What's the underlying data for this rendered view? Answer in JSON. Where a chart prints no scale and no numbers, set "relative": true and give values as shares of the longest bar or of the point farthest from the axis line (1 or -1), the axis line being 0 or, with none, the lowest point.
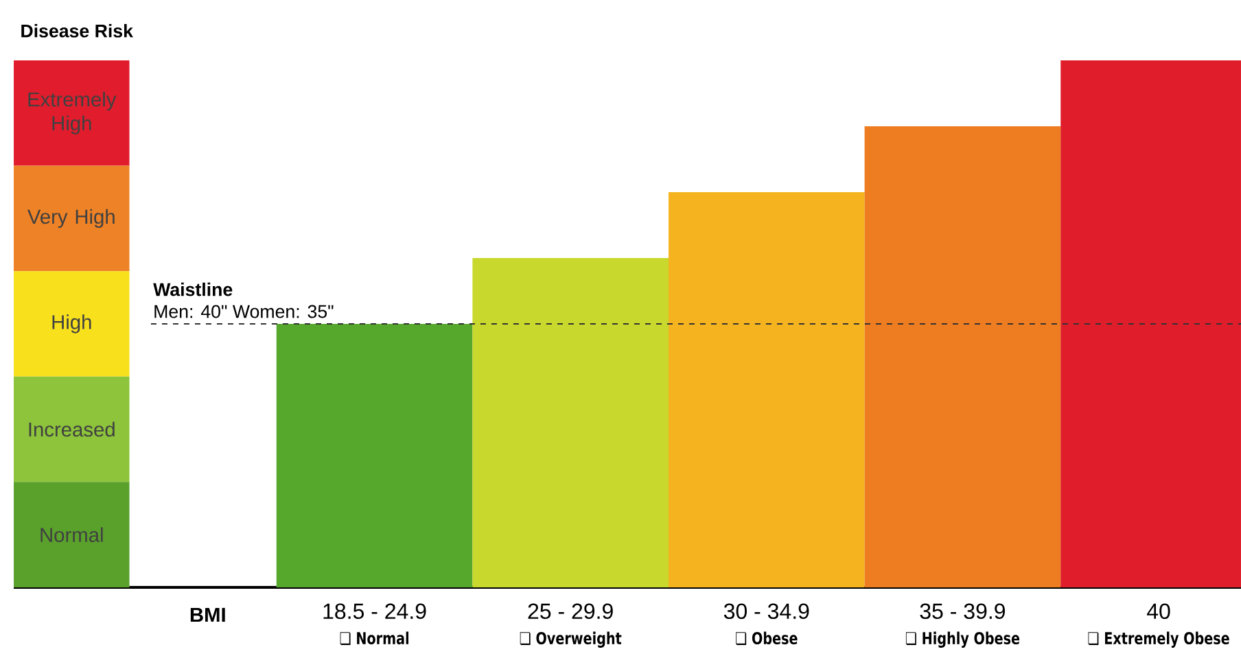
{
  "chart_data": {
    "type": "bar",
    "relative": true,
    "ylabel": "Disease Risk",
    "xlabel": "BMI",
    "categories": [
      "18.5 - 24.9",
      "25 - 29.9",
      "30 - 34.9",
      "35 - 39.9",
      "40"
    ],
    "values": [
      0.5,
      0.625,
      0.75,
      0.875,
      1
    ],
    "colors": [
      "#56a82c",
      "#c9d82c",
      "#f5b41f",
      "#ee7d22",
      "#e01e2b"
    ],
    "ref_lines": [
      {
        "axis": "y",
        "value": 0.5,
        "label": "Waistline",
        "line_style": "dashed",
        "color": "#333333"
      }
    ],
    "annotations": [
      "Extremely High",
      "Very High",
      "High",
      "Increased",
      "Normal",
      "Men: 40\" Women: 35\"",
      "❏ Normal",
      "❏ Overweight",
      "❏ Obese",
      "❏ Highly Obese",
      "❏ Extremely Obese"
    ]
  }
}
